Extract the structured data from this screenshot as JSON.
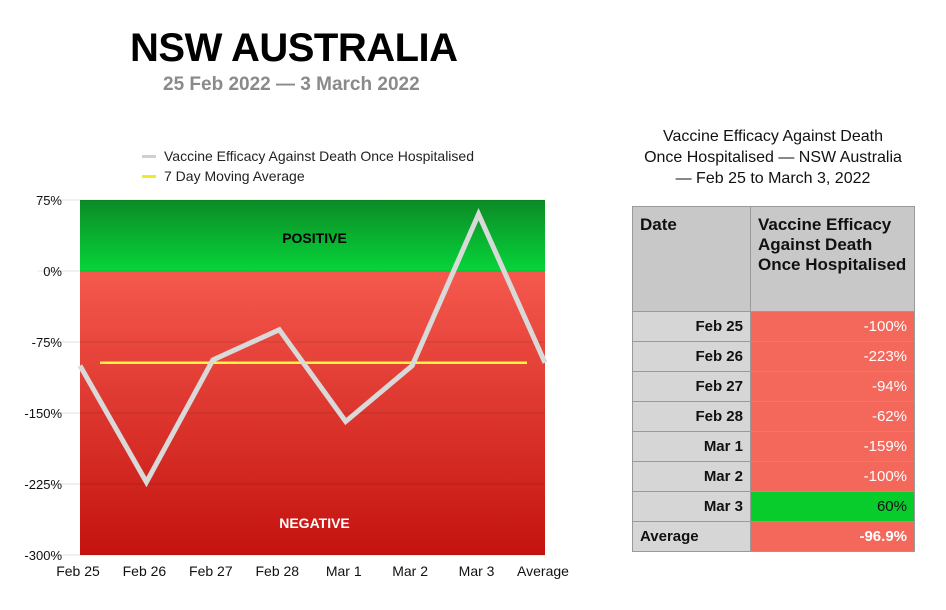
{
  "header": {
    "title": "NSW AUSTRALIA",
    "subtitle": "25 Feb 2022 — 3 March 2022"
  },
  "chart_data": {
    "type": "line",
    "categories": [
      "Feb 25",
      "Feb 26",
      "Feb 27",
      "Feb 28",
      "Mar 1",
      "Mar 2",
      "Mar 3",
      "Average"
    ],
    "series": [
      {
        "name": "Vaccine Efficacy Against Death Once Hospitalised",
        "color": "#d9d9d9",
        "values": [
          -100,
          -223,
          -94,
          -62,
          -159,
          -100,
          60,
          -96.9
        ]
      },
      {
        "name": "7 Day Moving Average",
        "color": "#f5f542",
        "values": [
          -96.9,
          -96.9,
          -96.9,
          -96.9,
          -96.9,
          -96.9,
          -96.9,
          -96.9
        ]
      }
    ],
    "ylim": [
      -300,
      75
    ],
    "yticks": [
      "75%",
      "0%",
      "-75%",
      "-150%",
      "-225%",
      "-300%"
    ],
    "ytick_values": [
      75,
      0,
      -75,
      -150,
      -225,
      -300
    ],
    "bands": [
      {
        "label": "POSITIVE",
        "from": 0,
        "to": 75,
        "colors": [
          "#0c8a26",
          "#07d43a"
        ]
      },
      {
        "label": "NEGATIVE",
        "from": -300,
        "to": 0,
        "colors": [
          "#f5594d",
          "#c4130f"
        ]
      }
    ],
    "legend_position": "top-left",
    "grid": true
  },
  "table": {
    "title_lines": [
      "Vaccine Efficacy Against Death",
      "Once Hospitalised — NSW Australia",
      "— Feb 25 to March 3, 2022"
    ],
    "header_date": "Date",
    "header_value": "Vaccine Efficacy Against Death Once Hospitalised",
    "rows": [
      {
        "date": "Feb 25",
        "value": "-100%",
        "status": "neg"
      },
      {
        "date": "Feb 26",
        "value": "-223%",
        "status": "neg"
      },
      {
        "date": "Feb 27",
        "value": "-94%",
        "status": "neg"
      },
      {
        "date": "Feb 28",
        "value": "-62%",
        "status": "neg"
      },
      {
        "date": "Mar 1",
        "value": "-159%",
        "status": "neg"
      },
      {
        "date": "Mar 2",
        "value": "-100%",
        "status": "neg"
      },
      {
        "date": "Mar 3",
        "value": "60%",
        "status": "pos"
      },
      {
        "date": "Average",
        "value": "-96.9%",
        "status": "neg"
      }
    ]
  }
}
